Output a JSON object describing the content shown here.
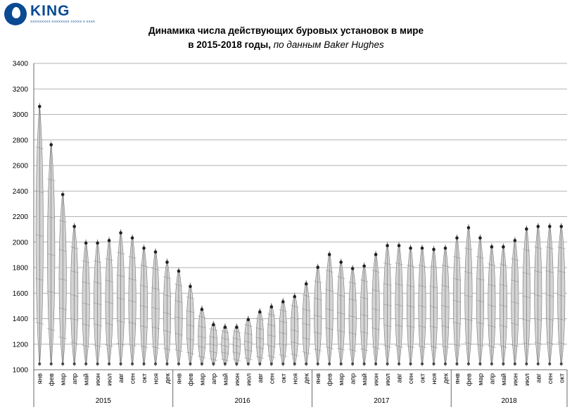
{
  "logo": {
    "name": "KING",
    "subtitle": "XXXXXXXXX XXXXXXXX XXXXX X XXXX"
  },
  "title": {
    "line1": "Динамика числа действующих буровых установок в мире",
    "line2_bold": "в 2015-2018 годы,",
    "line2_italic": " по данным Baker Hughes"
  },
  "chart_data": {
    "type": "line",
    "title": "Динамика числа действующих буровых установок в мире в 2015-2018 годы, по данным Baker Hughes",
    "ylim": [
      1000,
      3400
    ],
    "yticks": [
      1000,
      1200,
      1400,
      1600,
      1800,
      2000,
      2200,
      2400,
      2600,
      2800,
      3000,
      3200,
      3400
    ],
    "grid": true,
    "month_labels": [
      "янв",
      "фев",
      "мар",
      "апр",
      "май",
      "июн",
      "июл",
      "авг",
      "сен",
      "окт",
      "ноя",
      "дек",
      "янв",
      "фев",
      "мар",
      "апр",
      "май",
      "июн",
      "июл",
      "авг",
      "сен",
      "окт",
      "ноя",
      "дек",
      "янв",
      "фев",
      "мар",
      "апр",
      "май",
      "июн",
      "июл",
      "авг",
      "сен",
      "окт",
      "ноя",
      "дек",
      "янв",
      "фев",
      "мар",
      "апр",
      "май",
      "июн",
      "июл",
      "авг",
      "сен",
      "окт"
    ],
    "years": [
      {
        "label": "2015",
        "months": 12
      },
      {
        "label": "2016",
        "months": 12
      },
      {
        "label": "2017",
        "months": 12
      },
      {
        "label": "2018",
        "months": 10
      }
    ],
    "series": [
      {
        "values": [
          3090,
          2790,
          2400,
          2150,
          2020,
          2020,
          2040,
          2100,
          2060,
          1980,
          1950,
          1870,
          1800,
          1680,
          1500,
          1380,
          1360,
          1360,
          1420,
          1480,
          1520,
          1560,
          1600,
          1700,
          1830,
          1930,
          1870,
          1820,
          1840,
          1930,
          2000,
          2000,
          1980,
          1980,
          1970,
          1980,
          2060,
          2140,
          2060,
          1990,
          1990,
          2040,
          2130,
          2150,
          2150,
          2150
        ]
      }
    ]
  }
}
